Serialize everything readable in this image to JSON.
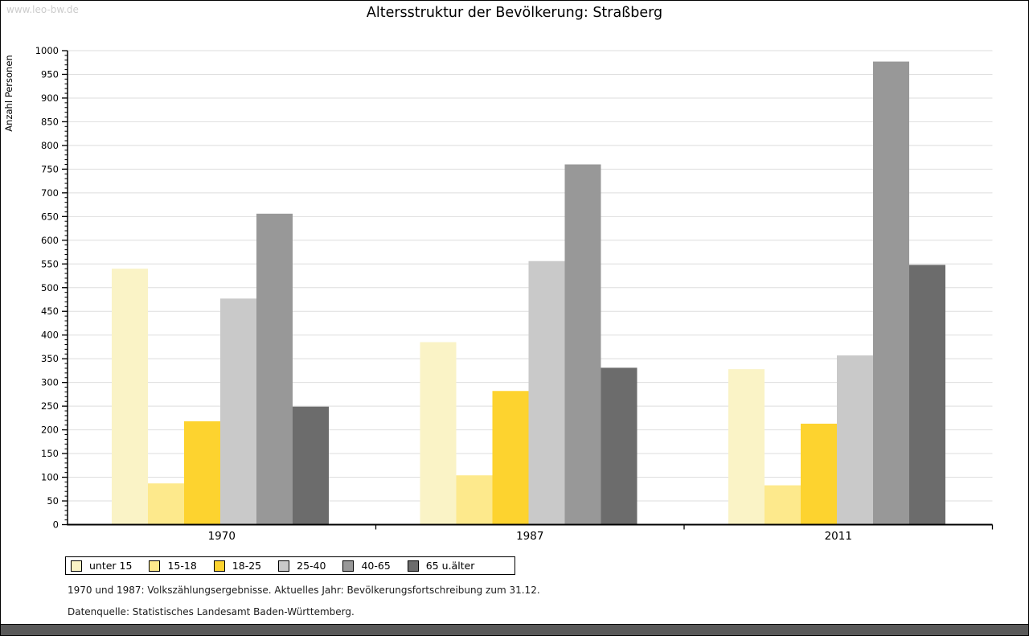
{
  "page": {
    "watermark": "www.leo-bw.de"
  },
  "chart_data": {
    "type": "bar",
    "title": "Altersstruktur der Bevölkerung: Straßberg",
    "xlabel": "",
    "ylabel": "Anzahl Personen",
    "categories": [
      "1970",
      "1987",
      "2011"
    ],
    "series": [
      {
        "name": "unter 15",
        "color": "#FAF3C6",
        "values": [
          540,
          385,
          328
        ]
      },
      {
        "name": "15-18",
        "color": "#FDE98C",
        "values": [
          87,
          104,
          83
        ]
      },
      {
        "name": "18-25",
        "color": "#FDD32F",
        "values": [
          218,
          282,
          213
        ]
      },
      {
        "name": "25-40",
        "color": "#C9C9C9",
        "values": [
          477,
          556,
          357
        ]
      },
      {
        "name": "40-65",
        "color": "#989898",
        "values": [
          656,
          760,
          977
        ]
      },
      {
        "name": "65 u.älter",
        "color": "#6C6C6C",
        "values": [
          249,
          331,
          548
        ]
      }
    ],
    "ylim": [
      0,
      1000
    ],
    "ytick_step": 50,
    "yminor_step": 10,
    "grid": true,
    "gridline_color": "#DEDEDE",
    "axis_color": "#000000",
    "legend_position": "bottom"
  },
  "footnotes": {
    "line1": "1970 und 1987: Volkszählungsergebnisse. Aktuelles Jahr: Bevölkerungsfortschreibung zum 31.12.",
    "line2": "Datenquelle: Statistisches Landesamt Baden-Württemberg."
  }
}
